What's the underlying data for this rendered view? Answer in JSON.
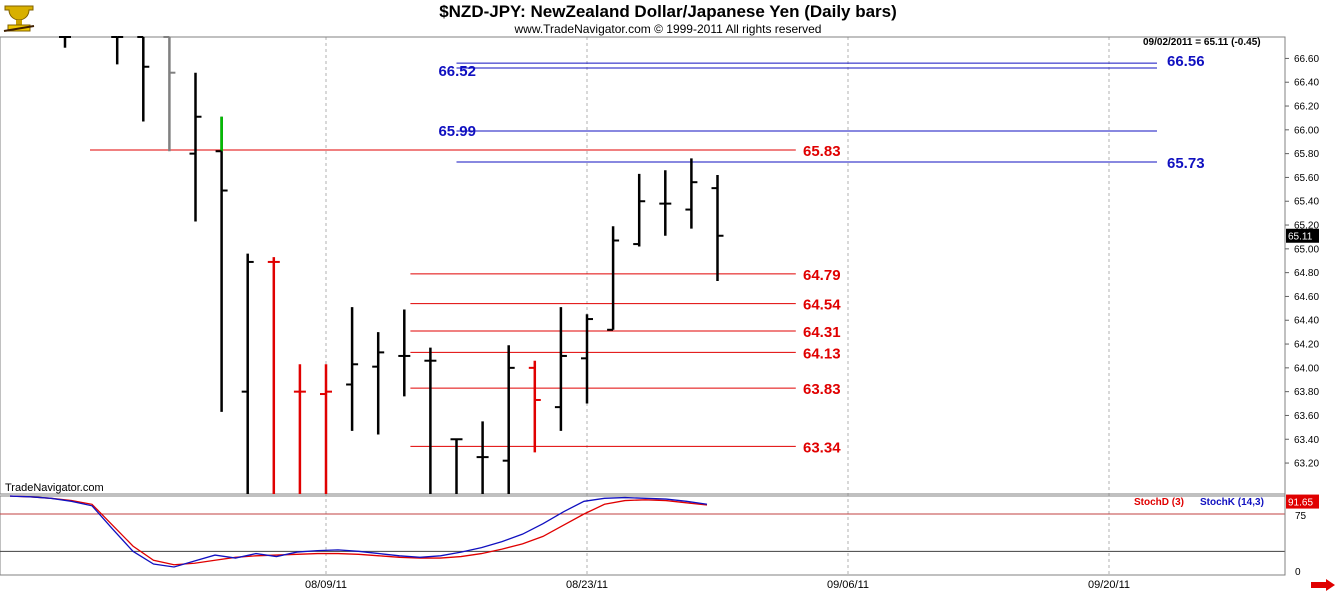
{
  "header": {
    "title": "$NZD-JPY:  NewZealand Dollar/Japanese Yen  (Daily bars)",
    "subtitle": "www.TradeNavigator.com © 1999-2011 All rights reserved",
    "stamp": "09/02/2011 = 65.11 (-0.45)"
  },
  "watermark": "TradeNavigator.com",
  "logo_icon": "trophy-icon",
  "colors": {
    "up": "#000000",
    "down": "#e00000",
    "blue": "#1010c0",
    "green": "#00c000",
    "gray": "#808080"
  },
  "chart_data": [
    {
      "type": "ohlc",
      "title": "$NZD-JPY:  NewZealand Dollar/Japanese Yen  (Daily bars)",
      "ylim": [
        62.94,
        66.78
      ],
      "y_ticks": [
        63.2,
        63.4,
        63.6,
        63.8,
        64.0,
        64.2,
        64.4,
        64.6,
        64.8,
        65.0,
        65.2,
        65.4,
        65.6,
        65.8,
        66.0,
        66.2,
        66.4,
        66.6
      ],
      "y_tick_labels": [
        "63.20",
        "63.40",
        "63.60",
        "63.80",
        "64.00",
        "64.20",
        "64.40",
        "64.60",
        "64.80",
        "65.00",
        "65.20",
        "65.40",
        "65.60",
        "65.80",
        "66.00",
        "66.20",
        "66.40",
        "66.60"
      ],
      "x_labels": [
        {
          "date": "2011-08-09",
          "label": "08/09/11"
        },
        {
          "date": "2011-08-23",
          "label": "08/23/11"
        },
        {
          "date": "2011-09-06",
          "label": "09/06/11"
        },
        {
          "date": "2011-09-20",
          "label": "09/20/11"
        }
      ],
      "last_price": {
        "value": 65.11,
        "label": "65.11"
      },
      "bars": [
        {
          "date": "2011-07-26",
          "open": 66.78,
          "high": 66.78,
          "low": 66.69,
          "close": 66.78,
          "color": "up"
        },
        {
          "date": "2011-07-28",
          "open": 66.78,
          "high": 66.78,
          "low": 66.55,
          "close": 66.78,
          "color": "up"
        },
        {
          "date": "2011-07-29",
          "open": 66.78,
          "high": 66.78,
          "low": 66.07,
          "close": 66.53,
          "color": "up"
        },
        {
          "date": "2011-08-01",
          "open": 66.78,
          "high": 66.78,
          "low": 65.82,
          "close": 66.48,
          "color": "gray"
        },
        {
          "date": "2011-08-02",
          "open": 65.8,
          "high": 66.48,
          "low": 65.23,
          "close": 66.11,
          "color": "up"
        },
        {
          "date": "2011-08-03",
          "open": 65.82,
          "high": 66.11,
          "low": 63.63,
          "close": 65.49,
          "color": "up",
          "high_segment_color": "green"
        },
        {
          "date": "2011-08-04",
          "open": 63.8,
          "high": 64.96,
          "low": 62.94,
          "close": 64.89,
          "color": "up"
        },
        {
          "date": "2011-08-05",
          "open": 64.89,
          "high": 64.93,
          "low": 62.94,
          "close": 64.89,
          "color": "down"
        },
        {
          "date": "2011-08-08",
          "open": 63.8,
          "high": 64.03,
          "low": 62.94,
          "close": 63.8,
          "color": "down"
        },
        {
          "date": "2011-08-09",
          "open": 63.78,
          "high": 64.03,
          "low": 62.94,
          "close": 63.8,
          "color": "down"
        },
        {
          "date": "2011-08-10",
          "open": 63.86,
          "high": 64.51,
          "low": 63.47,
          "close": 64.03,
          "color": "up"
        },
        {
          "date": "2011-08-11",
          "open": 64.01,
          "high": 64.3,
          "low": 63.44,
          "close": 64.13,
          "color": "up"
        },
        {
          "date": "2011-08-12",
          "open": 64.1,
          "high": 64.49,
          "low": 63.76,
          "close": 64.1,
          "color": "up"
        },
        {
          "date": "2011-08-15",
          "open": 64.06,
          "high": 64.17,
          "low": 62.94,
          "close": 64.06,
          "color": "up"
        },
        {
          "date": "2011-08-16",
          "open": 63.4,
          "high": 63.4,
          "low": 62.94,
          "close": 63.4,
          "color": "up"
        },
        {
          "date": "2011-08-17",
          "open": 63.25,
          "high": 63.55,
          "low": 62.94,
          "close": 63.25,
          "color": "up"
        },
        {
          "date": "2011-08-18",
          "open": 63.22,
          "high": 64.19,
          "low": 62.94,
          "close": 64.0,
          "color": "up"
        },
        {
          "date": "2011-08-19",
          "open": 64.0,
          "high": 64.06,
          "low": 63.29,
          "close": 63.73,
          "color": "down"
        },
        {
          "date": "2011-08-22",
          "open": 63.67,
          "high": 64.51,
          "low": 63.47,
          "close": 64.1,
          "color": "up"
        },
        {
          "date": "2011-08-23",
          "open": 64.08,
          "high": 64.45,
          "low": 63.7,
          "close": 64.41,
          "color": "up"
        },
        {
          "date": "2011-08-24",
          "open": 64.32,
          "high": 65.19,
          "low": 64.32,
          "close": 65.07,
          "color": "up"
        },
        {
          "date": "2011-08-25",
          "open": 65.04,
          "high": 65.63,
          "low": 65.02,
          "close": 65.4,
          "color": "up"
        },
        {
          "date": "2011-08-26",
          "open": 65.38,
          "high": 65.66,
          "low": 65.11,
          "close": 65.38,
          "color": "up"
        },
        {
          "date": "2011-08-29",
          "open": 65.33,
          "high": 65.76,
          "low": 65.17,
          "close": 65.56,
          "color": "up"
        },
        {
          "date": "2011-08-30",
          "open": 65.51,
          "high": 65.62,
          "low": 64.73,
          "close": 65.11,
          "color": "up"
        }
      ],
      "levels": [
        {
          "value": 65.83,
          "label": "65.83",
          "color": "red",
          "from": "2011-07-26",
          "to": "2011-09-02"
        },
        {
          "value": 64.79,
          "label": "64.79",
          "color": "red",
          "from": "2011-08-15",
          "to": "2011-09-02"
        },
        {
          "value": 64.54,
          "label": "64.54",
          "color": "red",
          "from": "2011-08-15",
          "to": "2011-09-02"
        },
        {
          "value": 64.31,
          "label": "64.31",
          "color": "red",
          "from": "2011-08-15",
          "to": "2011-09-02"
        },
        {
          "value": 64.13,
          "label": "64.13",
          "color": "red",
          "from": "2011-08-15",
          "to": "2011-09-02"
        },
        {
          "value": 63.83,
          "label": "63.83",
          "color": "red",
          "from": "2011-08-15",
          "to": "2011-09-02"
        },
        {
          "value": 63.34,
          "label": "63.34",
          "color": "red",
          "from": "2011-08-15",
          "to": "2011-09-02"
        },
        {
          "value": 66.52,
          "label": "66.52",
          "color": "blue",
          "from": "2011-08-16",
          "to": "2011-09-26"
        },
        {
          "value": 66.56,
          "label": "66.56",
          "color": "blue",
          "from": "2011-08-16",
          "to": "2011-09-26"
        },
        {
          "value": 65.99,
          "label": "65.99",
          "color": "blue",
          "from": "2011-08-16",
          "to": "2011-09-26"
        },
        {
          "value": 65.73,
          "label": "65.73",
          "color": "blue",
          "from": "2011-08-16",
          "to": "2011-09-26"
        }
      ]
    },
    {
      "type": "line",
      "ylim": [
        0,
        100
      ],
      "y_ticks": [
        75,
        0
      ],
      "y_tick_labels": [
        "75",
        "0"
      ],
      "reference_lines": [
        75,
        25
      ],
      "last_value": {
        "value": 91.65,
        "label": "91.65"
      },
      "series": [
        {
          "name": "StochD (3)",
          "color": "red",
          "values": [
            99,
            98,
            96,
            93,
            88,
            60,
            32,
            13,
            7,
            9,
            13,
            17,
            19,
            20,
            21,
            22,
            22,
            21,
            19,
            17,
            16,
            16,
            18,
            22,
            28,
            35,
            45,
            60,
            75,
            88,
            93,
            94,
            93,
            90,
            87
          ]
        },
        {
          "name": "StochK (14,3)",
          "color": "blue",
          "values": [
            99,
            98,
            96,
            92,
            86,
            55,
            25,
            8,
            4,
            12,
            20,
            16,
            22,
            18,
            24,
            26,
            27,
            25,
            22,
            19,
            17,
            19,
            24,
            30,
            38,
            48,
            62,
            78,
            92,
            96,
            97,
            96,
            95,
            92,
            88
          ]
        }
      ]
    }
  ]
}
